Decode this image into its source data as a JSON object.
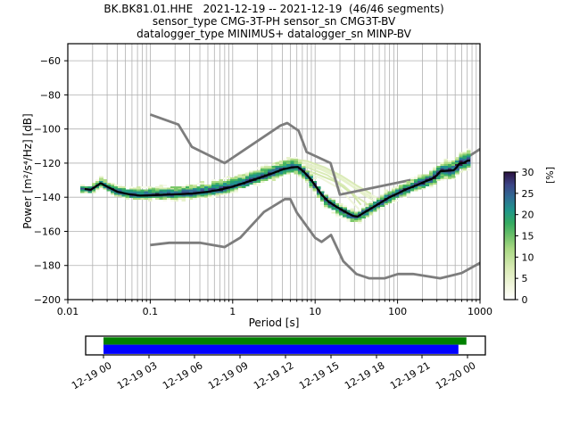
{
  "title": {
    "line1": "BK.BK81.01.HHE   2021-12-19 -- 2021-12-19  (46/46 segments)",
    "line2": "sensor_type CMG-3T-PH sensor_sn CMG3T-BV",
    "line3": "datalogger_type MINIMUS+ datalogger_sn MINP-BV"
  },
  "chart_data": {
    "type": "heatmap",
    "title": "BK.BK81.01.HHE 2021-12-19 -- 2021-12-19 (46/46 segments)",
    "xlabel": "Period [s]",
    "ylabel": "Power [m²/s⁴/Hz] [dB]",
    "x_scale": "log",
    "xlim": [
      0.01,
      1000
    ],
    "ylim": [
      -200,
      -50
    ],
    "grid": true,
    "grid_color": "#b0b0b0",
    "x_ticks": [
      {
        "v": 0.01,
        "label": "0.01"
      },
      {
        "v": 0.1,
        "label": "0.1"
      },
      {
        "v": 1,
        "label": "1"
      },
      {
        "v": 10,
        "label": "10"
      },
      {
        "v": 100,
        "label": "100"
      },
      {
        "v": 1000,
        "label": "1000"
      }
    ],
    "y_ticks": [
      {
        "v": -60,
        "label": "−60"
      },
      {
        "v": -80,
        "label": "−80"
      },
      {
        "v": -100,
        "label": "−100"
      },
      {
        "v": -120,
        "label": "−120"
      },
      {
        "v": -140,
        "label": "−140"
      },
      {
        "v": -160,
        "label": "−160"
      },
      {
        "v": -180,
        "label": "−180"
      },
      {
        "v": -200,
        "label": "−200"
      }
    ],
    "colorbar": {
      "label": "[%]",
      "ticks": [
        {
          "v": 0,
          "label": "0"
        },
        {
          "v": 5,
          "label": "5"
        },
        {
          "v": 10,
          "label": "10"
        },
        {
          "v": 15,
          "label": "15"
        },
        {
          "v": 20,
          "label": "20"
        },
        {
          "v": 25,
          "label": "25"
        },
        {
          "v": 30,
          "label": "30"
        }
      ],
      "vmax": 30,
      "gradient_stops": [
        {
          "o": 0.0,
          "c": "#ffffff"
        },
        {
          "o": 0.1,
          "c": "#f3f7e0"
        },
        {
          "o": 0.25,
          "c": "#d8eab4"
        },
        {
          "o": 0.4,
          "c": "#a8d883"
        },
        {
          "o": 0.5,
          "c": "#6ec06a"
        },
        {
          "o": 0.6,
          "c": "#35ab61"
        },
        {
          "o": 0.7,
          "c": "#21968b"
        },
        {
          "o": 0.8,
          "c": "#2f6d94"
        },
        {
          "o": 0.9,
          "c": "#3c4586"
        },
        {
          "o": 1.0,
          "c": "#2c1240"
        }
      ]
    },
    "cell_palette": [
      "#f7faec",
      "#e8f3cd",
      "#d0e8a8",
      "#aedb85",
      "#7cc86a",
      "#45b35f",
      "#28a06d",
      "#21928c",
      "#2f7194",
      "#3a4d8a",
      "#2e1a47"
    ],
    "mode_line_color": "#000000",
    "noise_model_color": "#7d7d7d",
    "mode_line": [
      [
        0.016,
        -135.2
      ],
      [
        0.019,
        -135.6
      ],
      [
        0.022,
        -133.6
      ],
      [
        0.025,
        -131.8
      ],
      [
        0.03,
        -133.8
      ],
      [
        0.04,
        -136.8
      ],
      [
        0.055,
        -138.2
      ],
      [
        0.075,
        -139.0
      ],
      [
        0.11,
        -138.8
      ],
      [
        0.16,
        -138.5
      ],
      [
        0.23,
        -138.2
      ],
      [
        0.33,
        -137.8
      ],
      [
        0.5,
        -136.8
      ],
      [
        0.7,
        -135.6
      ],
      [
        1.0,
        -133.8
      ],
      [
        1.4,
        -131.5
      ],
      [
        2.0,
        -129.0
      ],
      [
        2.8,
        -126.6
      ],
      [
        4.0,
        -123.8
      ],
      [
        5.2,
        -122.5
      ],
      [
        6.2,
        -122.3
      ],
      [
        7.2,
        -124.8
      ],
      [
        8.5,
        -128.5
      ],
      [
        10,
        -133.0
      ],
      [
        12,
        -138.5
      ],
      [
        14.5,
        -142.5
      ],
      [
        18,
        -145.5
      ],
      [
        23,
        -148.5
      ],
      [
        29,
        -151.0
      ],
      [
        33,
        -151.3
      ],
      [
        40,
        -148.8
      ],
      [
        50,
        -146.0
      ],
      [
        63,
        -143.0
      ],
      [
        80,
        -140.0
      ],
      [
        100,
        -137.8
      ],
      [
        130,
        -135.2
      ],
      [
        165,
        -133.2
      ],
      [
        210,
        -131.0
      ],
      [
        260,
        -129.3
      ],
      [
        300,
        -127.2
      ],
      [
        330,
        -124.8
      ],
      [
        400,
        -124.5
      ],
      [
        480,
        -124.2
      ],
      [
        520,
        -122.5
      ],
      [
        560,
        -120.3
      ],
      [
        640,
        -119.8
      ],
      [
        700,
        -118.6
      ],
      [
        760,
        -118.4
      ]
    ],
    "band_width": [
      [
        0.015,
        2.5,
        2.5
      ],
      [
        0.025,
        3,
        3.5
      ],
      [
        0.05,
        3,
        4
      ],
      [
        0.1,
        3,
        5
      ],
      [
        0.3,
        3.5,
        6
      ],
      [
        0.7,
        3.5,
        6.5
      ],
      [
        1.5,
        3.5,
        6
      ],
      [
        3,
        4,
        6
      ],
      [
        5,
        4.5,
        6
      ],
      [
        7,
        5,
        4.5
      ],
      [
        10,
        5,
        3.5
      ],
      [
        15,
        5,
        3
      ],
      [
        25,
        4.5,
        3
      ],
      [
        40,
        4,
        4
      ],
      [
        70,
        4,
        5
      ],
      [
        150,
        4,
        5
      ],
      [
        300,
        5,
        6
      ],
      [
        500,
        5.5,
        7
      ],
      [
        760,
        5,
        8
      ]
    ],
    "band_period_range": [
      0.015,
      780
    ],
    "ghost_lines": [
      [
        [
          4.2,
          -119.5
        ],
        [
          7,
          -120.5
        ],
        [
          12,
          -124
        ],
        [
          20,
          -129
        ],
        [
          30,
          -134.5
        ],
        [
          45,
          -139
        ],
        [
          60,
          -141
        ]
      ],
      [
        [
          4.6,
          -121
        ],
        [
          8,
          -122.5
        ],
        [
          14,
          -127
        ],
        [
          22,
          -133
        ],
        [
          32,
          -140
        ],
        [
          42,
          -143.5
        ]
      ],
      [
        [
          5,
          -117.8
        ],
        [
          9,
          -120
        ],
        [
          16,
          -125
        ],
        [
          26,
          -131
        ],
        [
          38,
          -136.5
        ],
        [
          55,
          -140
        ]
      ],
      [
        [
          5.5,
          -122
        ],
        [
          10,
          -126
        ],
        [
          18,
          -131
        ],
        [
          28,
          -138
        ],
        [
          36,
          -144.5
        ]
      ],
      [
        [
          6,
          -119
        ],
        [
          11,
          -122.5
        ],
        [
          19,
          -127.5
        ],
        [
          29,
          -134
        ],
        [
          40,
          -139
        ],
        [
          52,
          -142
        ]
      ],
      [
        [
          3,
          -120.5
        ],
        [
          5.2,
          -117.5
        ],
        [
          8,
          -118.8
        ],
        [
          13,
          -122.5
        ],
        [
          21,
          -127.5
        ],
        [
          33,
          -133.5
        ],
        [
          48,
          -138
        ]
      ],
      [
        [
          7,
          -124.5
        ],
        [
          12,
          -129
        ],
        [
          20,
          -135
        ],
        [
          27,
          -142
        ],
        [
          34,
          -147
        ]
      ],
      [
        [
          1.2,
          -127.5
        ],
        [
          2.1,
          -124.5
        ],
        [
          3.3,
          -121.5
        ],
        [
          4.6,
          -119.8
        ]
      ]
    ],
    "ghost_colors": [
      "#e3f0c4",
      "#d7e9b0",
      "#eef5d8",
      "#cfe5a4"
    ],
    "noise_models": {
      "nhnm": [
        [
          0.1,
          -91.5
        ],
        [
          0.22,
          -97.4
        ],
        [
          0.32,
          -110.5
        ],
        [
          0.8,
          -120.0
        ],
        [
          3.8,
          -98.0
        ],
        [
          4.6,
          -96.5
        ],
        [
          6.3,
          -101.0
        ],
        [
          7.9,
          -113.5
        ],
        [
          15.4,
          -120.0
        ],
        [
          20,
          -138.5
        ],
        [
          354.8,
          -126.0
        ],
        [
          1000,
          -111.8
        ]
      ],
      "nlnm": [
        [
          0.1,
          -168.0
        ],
        [
          0.17,
          -166.7
        ],
        [
          0.4,
          -166.7
        ],
        [
          0.8,
          -169.2
        ],
        [
          1.24,
          -163.7
        ],
        [
          2.4,
          -148.6
        ],
        [
          4.3,
          -141.1
        ],
        [
          5.0,
          -141.1
        ],
        [
          6.0,
          -149.0
        ],
        [
          10.0,
          -163.8
        ],
        [
          12.0,
          -166.2
        ],
        [
          15.6,
          -162.1
        ],
        [
          21.9,
          -177.5
        ],
        [
          31.6,
          -185.0
        ],
        [
          45.0,
          -187.5
        ],
        [
          70.0,
          -187.5
        ],
        [
          101.0,
          -185.0
        ],
        [
          154.0,
          -185.0
        ],
        [
          328.0,
          -187.5
        ],
        [
          600.0,
          -184.4
        ],
        [
          1000,
          -178.5
        ]
      ]
    },
    "timeline": {
      "tick_labels": [
        "12-19 00",
        "12-19 03",
        "12-19 06",
        "12-19 09",
        "12-19 12",
        "12-19 15",
        "12-19 18",
        "12-19 21",
        "12-20 00"
      ],
      "hours_total": 24,
      "tick_step_hours": 3,
      "green_bar_frac": [
        0.0,
        0.997
      ],
      "blue_bar_frac": [
        0.0,
        0.975
      ],
      "green_color": "#008000",
      "blue_color": "#0000ff"
    }
  }
}
